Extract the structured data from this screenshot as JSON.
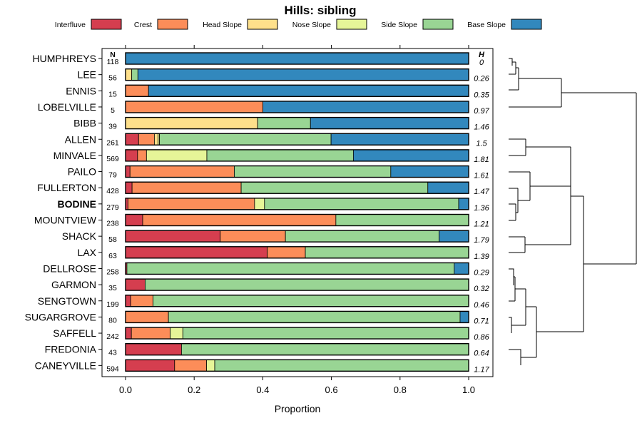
{
  "chart_data": {
    "type": "bar",
    "orientation": "horizontal",
    "stacked": true,
    "title": "Hills: sibling",
    "xlabel": "Proportion",
    "ylabel": "",
    "xlim": [
      0,
      1
    ],
    "xticks": [
      "0.0",
      "0.2",
      "0.4",
      "0.6",
      "0.8",
      "1.0"
    ],
    "xtick_values": [
      0,
      0.2,
      0.4,
      0.6,
      0.8,
      1.0
    ],
    "n_header": "N",
    "h_header": "H",
    "highlight": "BODINE",
    "legend": [
      {
        "name": "Interfluve",
        "color": "#D53E4F"
      },
      {
        "name": "Crest",
        "color": "#FC8D59"
      },
      {
        "name": "Head Slope",
        "color": "#FEE08B"
      },
      {
        "name": "Nose Slope",
        "color": "#E6F598"
      },
      {
        "name": "Side Slope",
        "color": "#99D594"
      },
      {
        "name": "Base Slope",
        "color": "#3288BD"
      }
    ],
    "categories": [
      "HUMPHREYS",
      "LEE",
      "ENNIS",
      "LOBELVILLE",
      "BIBB",
      "ALLEN",
      "MINVALE",
      "PAILO",
      "FULLERTON",
      "BODINE",
      "MOUNTVIEW",
      "SHACK",
      "LAX",
      "DELLROSE",
      "GARMON",
      "SENGTOWN",
      "SUGARGROVE",
      "SAFFELL",
      "FREDONIA",
      "CANEYVILLE"
    ],
    "n_values": [
      "118",
      "56",
      "15",
      "5",
      "39",
      "261",
      "569",
      "79",
      "428",
      "279",
      "238",
      "58",
      "63",
      "258",
      "35",
      "199",
      "80",
      "242",
      "43",
      "594"
    ],
    "h_values": [
      "0",
      "0.26",
      "0.35",
      "0.97",
      "1.46",
      "1.5",
      "1.81",
      "1.61",
      "1.47",
      "1.36",
      "1.21",
      "1.79",
      "1.39",
      "0.29",
      "0.32",
      "0.46",
      "0.71",
      "0.86",
      "0.64",
      "1.17"
    ],
    "series": [
      {
        "name": "Interfluve",
        "values": [
          0,
          0,
          0,
          0,
          0,
          0.038,
          0.035,
          0.013,
          0.019,
          0.007,
          0.05,
          0.276,
          0.413,
          0.004,
          0.057,
          0.015,
          0,
          0.017,
          0.163,
          0.143
        ]
      },
      {
        "name": "Crest",
        "values": [
          0,
          0,
          0.067,
          0.4,
          0,
          0.046,
          0.026,
          0.304,
          0.318,
          0.369,
          0.563,
          0.19,
          0.111,
          0,
          0,
          0.065,
          0.125,
          0.113,
          0,
          0.093
        ]
      },
      {
        "name": "Head Slope",
        "values": [
          0,
          0.018,
          0,
          0,
          0.385,
          0.011,
          0,
          0,
          0,
          0,
          0,
          0,
          0,
          0,
          0,
          0,
          0,
          0,
          0,
          0
        ]
      },
      {
        "name": "Nose Slope",
        "values": [
          0,
          0,
          0,
          0,
          0,
          0.004,
          0.176,
          0,
          0,
          0.029,
          0,
          0,
          0,
          0,
          0,
          0,
          0,
          0.037,
          0,
          0.024
        ]
      },
      {
        "name": "Side Slope",
        "values": [
          0,
          0.018,
          0,
          0,
          0.154,
          0.5,
          0.427,
          0.456,
          0.544,
          0.566,
          0.387,
          0.448,
          0.476,
          0.954,
          0.943,
          0.92,
          0.85,
          0.833,
          0.837,
          0.74
        ]
      },
      {
        "name": "Base Slope",
        "values": [
          1.0,
          0.964,
          0.933,
          0.6,
          0.461,
          0.401,
          0.336,
          0.227,
          0.119,
          0.029,
          0,
          0.086,
          0,
          0.042,
          0,
          0,
          0.025,
          0,
          0,
          0
        ]
      }
    ]
  }
}
